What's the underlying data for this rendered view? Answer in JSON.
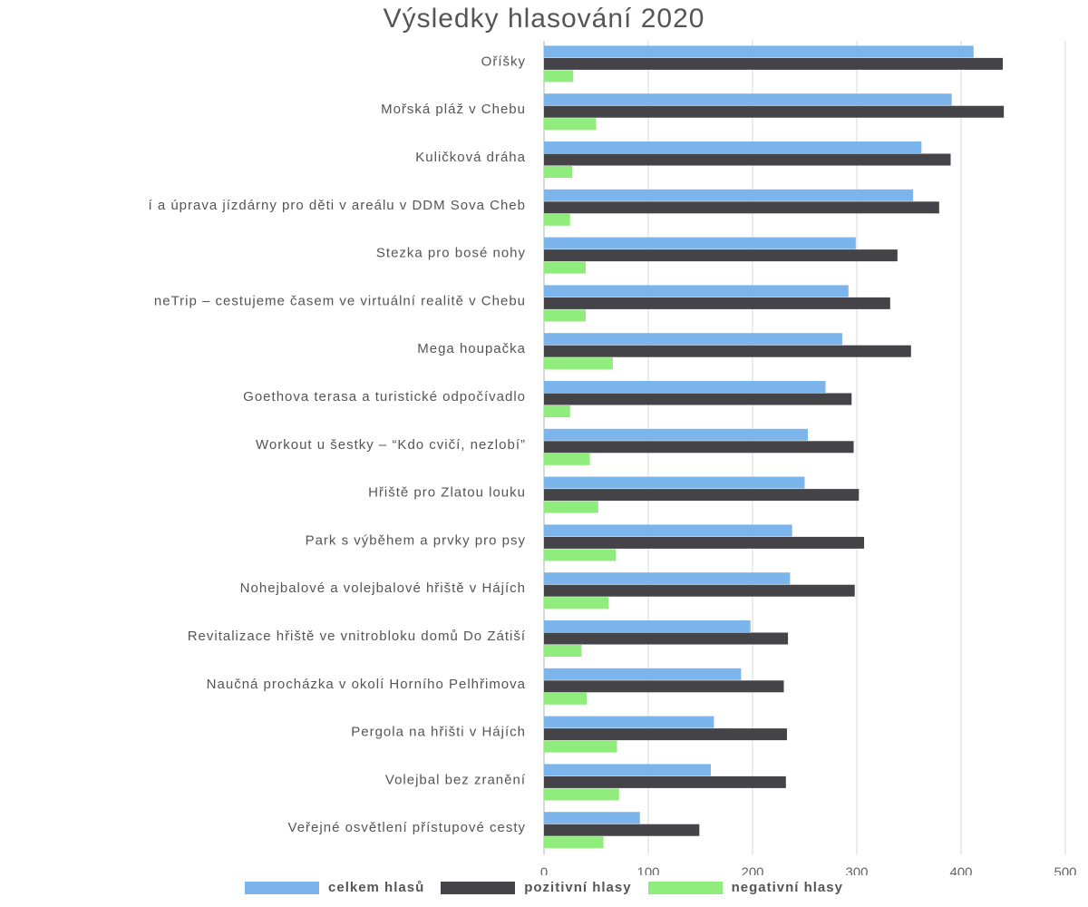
{
  "chart_data": {
    "type": "bar",
    "orientation": "horizontal",
    "title": "Výsledky hlasování 2020",
    "xlabel": "",
    "ylabel": "",
    "xlim": [
      0,
      500
    ],
    "xticks": [
      0,
      100,
      200,
      300,
      400,
      500
    ],
    "grid": true,
    "legend_position": "bottom",
    "categories": [
      "Oříšky",
      "Mořská pláž v Chebu",
      "Kuličková dráha",
      "í a úprava jízdárny pro děti v areálu v DDM Sova Cheb",
      "Stezka pro bosé nohy",
      "neTrip – cestujeme časem ve virtuální   realitě v Chebu",
      "Mega houpačka",
      "Goethova terasa a turistické odpočívadlo",
      "Workout u šestky – “Kdo cvičí, nezlobí”",
      "Hřiště pro Zlatou louku",
      "Park s výběhem a prvky pro psy",
      "Nohejbalové a volejbalové hřiště v Hájích",
      "Revitalizace hřiště ve vnitrobloku domů Do Zátiší",
      "Naučná procházka v okolí Horního Pelhřimova",
      "Pergola na hřišti v Hájích",
      "Volejbal bez zranění",
      "Veřejné osvětlení přístupové cesty"
    ],
    "series": [
      {
        "name": "celkem hlasů",
        "color": "#7cb5ec",
        "values": [
          412,
          391,
          362,
          354,
          299,
          292,
          286,
          270,
          253,
          250,
          238,
          236,
          198,
          189,
          163,
          160,
          92
        ]
      },
      {
        "name": "pozitivní hlasy",
        "color": "#434348",
        "values": [
          440,
          441,
          390,
          379,
          339,
          332,
          352,
          295,
          297,
          302,
          307,
          298,
          234,
          230,
          233,
          232,
          149
        ]
      },
      {
        "name": "negativní hlasy",
        "color": "#90ed7d",
        "values": [
          28,
          50,
          27,
          25,
          40,
          40,
          66,
          25,
          44,
          52,
          69,
          62,
          36,
          41,
          70,
          72,
          57
        ]
      }
    ]
  }
}
